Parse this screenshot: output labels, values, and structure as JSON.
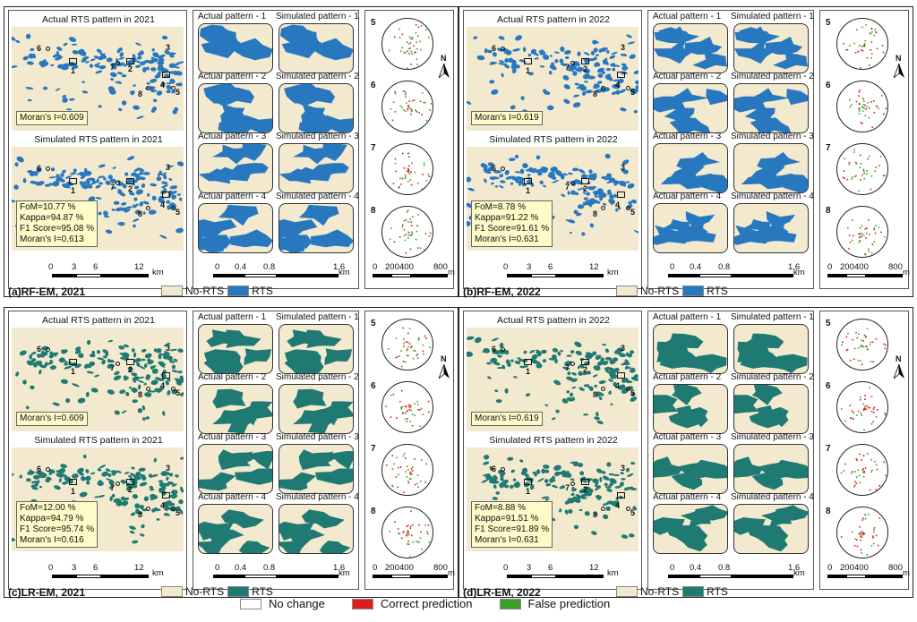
{
  "panels": [
    {
      "id": "a",
      "label": "(a)RF-EM, 2021",
      "color": "#2878c0",
      "title_actual": "Actual RTS pattern in 2021",
      "title_sim": "Simulated RTS pattern in 2021",
      "moran_actual": "Moran's I=0.609",
      "stats": [
        "FoM=10.77 %",
        "Kappa=94.87 %",
        "F1 Score=95.08 %",
        "Moran's I=0.613"
      ]
    },
    {
      "id": "b",
      "label": "(b)RF-EM, 2022",
      "color": "#2878c0",
      "title_actual": "Actual RTS pattern in 2022",
      "title_sim": "Simulated RTS pattern in 2022",
      "moran_actual": "Moran's I=0.619",
      "stats": [
        "FoM=8.78 %",
        "Kappa=91.22 %",
        "F1 Score=91.61 %",
        "Moran's I=0.631"
      ]
    },
    {
      "id": "c",
      "label": "(c)LR-EM, 2021",
      "color": "#1f7a73",
      "title_actual": "Actual RTS pattern in 2021",
      "title_sim": "Simulated RTS pattern in 2021",
      "moran_actual": "Moran's I=0.609",
      "stats": [
        "FoM=12.00 %",
        "Kappa=94.79 %",
        "F1 Score=95.74 %",
        "Moran's I=0.616"
      ]
    },
    {
      "id": "d",
      "label": "(d)LR-EM, 2022",
      "color": "#1f7a73",
      "title_actual": "Actual RTS pattern in 2022",
      "title_sim": "Simulated RTS pattern in 2022",
      "moran_actual": "Moran's I=0.619",
      "stats": [
        "FoM=8.88 %",
        "Kappa=91.51 %",
        "F1 Score=91.89 %",
        "Moran's I=0.631"
      ]
    }
  ],
  "zoom_titles": {
    "actual": [
      "Actual pattern - 1",
      "Actual pattern - 2",
      "Actual pattern - 3",
      "Actual pattern - 4"
    ],
    "simulated": [
      "Simulated pattern - 1",
      "Simulated pattern - 2",
      "Simulated pattern - 3",
      "Simulated pattern - 4"
    ]
  },
  "map_markers": [
    "1",
    "2",
    "3",
    "4",
    "5",
    "6",
    "7",
    "8"
  ],
  "circle_numbers": [
    "5",
    "6",
    "7",
    "8"
  ],
  "north": "N",
  "scale_big": {
    "ticks": [
      "0",
      "3",
      "6",
      "12"
    ],
    "unit": "km"
  },
  "scale_zoom": {
    "ticks": [
      "0",
      "0.4",
      "0.8",
      "1.6"
    ],
    "unit": "km"
  },
  "scale_circle": {
    "ticks": [
      "0",
      "200",
      "400",
      "800"
    ],
    "unit": "m"
  },
  "legend_inline": {
    "no_rts": "No-RTS",
    "rts": "RTS",
    "no_rts_color": "#f3e9cf"
  },
  "legend_bottom": [
    {
      "label": "No change",
      "color": "#ffffff"
    },
    {
      "label": "Correct prediction",
      "color": "#e01b1b"
    },
    {
      "label": "False prediction",
      "color": "#3aa02a"
    }
  ]
}
